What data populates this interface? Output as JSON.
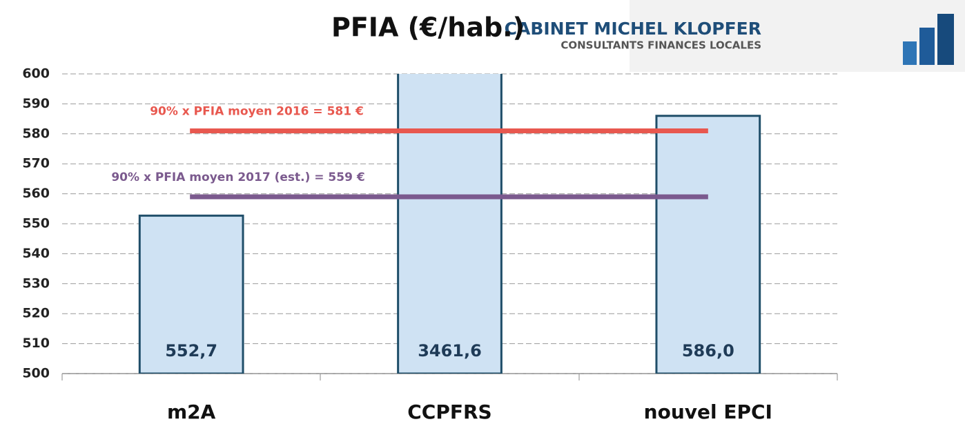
{
  "chart_data": {
    "type": "bar",
    "title": "PFIA (€/hab.)",
    "categories": [
      "m2A",
      "CCPFRS",
      "nouvel EPCI"
    ],
    "values": [
      552.7,
      3461.6,
      586.0
    ],
    "value_labels": [
      "552,7",
      "3461,6",
      "586,0"
    ],
    "color": "#cfe2f3",
    "edge_color": "#1f4e69",
    "ylim": [
      500,
      600
    ],
    "yticks": [
      500,
      510,
      520,
      530,
      540,
      550,
      560,
      570,
      580,
      590,
      600
    ],
    "grid": true,
    "reference_lines": [
      {
        "value": 581,
        "label": "90% x PFIA moyen 2016 = 581 €",
        "color": "#e8584f"
      },
      {
        "value": 559,
        "label": "90% x PFIA moyen 2017 (est.) = 559 €",
        "color": "#7b5a8e"
      }
    ]
  },
  "logo": {
    "line1": "CABINET MICHEL KLOPFER",
    "line2": "CONSULTANTS FINANCES LOCALES"
  }
}
